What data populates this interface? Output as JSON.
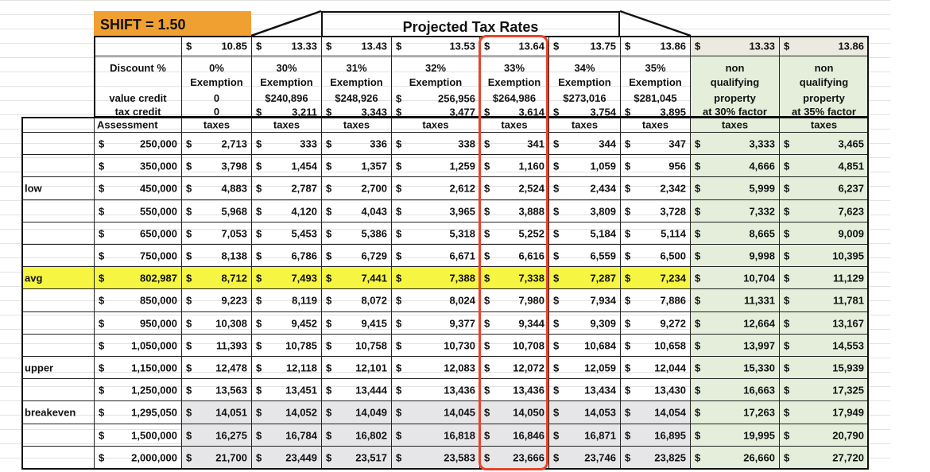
{
  "header": {
    "shift": "SHIFT = 1.50",
    "title": "Projected Tax Rates"
  },
  "colors": {
    "shift_bg": "#f0a030",
    "avg_row": "#f5f542",
    "nonqual_bg": "#e4eedb",
    "breakeven_bg": "#e6e6e8",
    "highlight_box": "#e8442a"
  },
  "rates": [
    "10.85",
    "13.33",
    "13.43",
    "13.53",
    "13.64",
    "13.75",
    "13.86",
    "13.33",
    "13.86"
  ],
  "labels": {
    "discount": "Discount %",
    "value_credit": "value credit",
    "tax_credit": "tax credit",
    "assessment": "Assessment",
    "taxes": "taxes"
  },
  "columns": [
    {
      "l1": "0%",
      "l2": "Exemption",
      "value_credit": "0",
      "tax_credit": "0"
    },
    {
      "l1": "30%",
      "l2": "Exemption",
      "value_credit": "$240,896",
      "tax_credit": "3,211"
    },
    {
      "l1": "31%",
      "l2": "Exemption",
      "value_credit": "$248,926",
      "tax_credit": "3,343"
    },
    {
      "l1": "32%",
      "l2": "Exemption",
      "value_credit": "256,956",
      "tax_credit": "3,477"
    },
    {
      "l1": "33%",
      "l2": "Exemption",
      "value_credit": "$264,986",
      "tax_credit": "3,614"
    },
    {
      "l1": "34%",
      "l2": "Exemption",
      "value_credit": "$273,016",
      "tax_credit": "3,754"
    },
    {
      "l1": "35%",
      "l2": "Exemption",
      "value_credit": "$281,045",
      "tax_credit": "3,895"
    },
    {
      "l1": "non",
      "l2": "qualifying",
      "value_credit": "property",
      "tax_credit": "at 30% factor"
    },
    {
      "l1": "non",
      "l2": "qualifying",
      "value_credit": "property",
      "tax_credit": "at 35% factor"
    }
  ],
  "rows": [
    {
      "label": "",
      "assessment": "250,000",
      "taxes": [
        "2,713",
        "333",
        "336",
        "338",
        "341",
        "344",
        "347",
        "3,333",
        "3,465"
      ]
    },
    {
      "label": "",
      "assessment": "350,000",
      "taxes": [
        "3,798",
        "1,454",
        "1,357",
        "1,259",
        "1,160",
        "1,059",
        "956",
        "4,666",
        "4,851"
      ]
    },
    {
      "label": "low",
      "assessment": "450,000",
      "taxes": [
        "4,883",
        "2,787",
        "2,700",
        "2,612",
        "2,524",
        "2,434",
        "2,342",
        "5,999",
        "6,237"
      ]
    },
    {
      "label": "",
      "assessment": "550,000",
      "taxes": [
        "5,968",
        "4,120",
        "4,043",
        "3,965",
        "3,888",
        "3,809",
        "3,728",
        "7,332",
        "7,623"
      ]
    },
    {
      "label": "",
      "assessment": "650,000",
      "taxes": [
        "7,053",
        "5,453",
        "5,386",
        "5,318",
        "5,252",
        "5,184",
        "5,114",
        "8,665",
        "9,009"
      ]
    },
    {
      "label": "",
      "assessment": "750,000",
      "taxes": [
        "8,138",
        "6,786",
        "6,729",
        "6,671",
        "6,616",
        "6,559",
        "6,500",
        "9,998",
        "10,395"
      ]
    },
    {
      "label": "avg",
      "assessment": "802,987",
      "taxes": [
        "8,712",
        "7,493",
        "7,441",
        "7,388",
        "7,338",
        "7,287",
        "7,234",
        "10,704",
        "11,129"
      ]
    },
    {
      "label": "",
      "assessment": "850,000",
      "taxes": [
        "9,223",
        "8,119",
        "8,072",
        "8,024",
        "7,980",
        "7,934",
        "7,886",
        "11,331",
        "11,781"
      ]
    },
    {
      "label": "",
      "assessment": "950,000",
      "taxes": [
        "10,308",
        "9,452",
        "9,415",
        "9,377",
        "9,344",
        "9,309",
        "9,272",
        "12,664",
        "13,167"
      ]
    },
    {
      "label": "",
      "assessment": "1,050,000",
      "taxes": [
        "11,393",
        "10,785",
        "10,758",
        "10,730",
        "10,708",
        "10,684",
        "10,658",
        "13,997",
        "14,553"
      ]
    },
    {
      "label": "upper",
      "assessment": "1,150,000",
      "taxes": [
        "12,478",
        "12,118",
        "12,101",
        "12,083",
        "12,072",
        "12,059",
        "12,044",
        "15,330",
        "15,939"
      ]
    },
    {
      "label": "",
      "assessment": "1,250,000",
      "taxes": [
        "13,563",
        "13,451",
        "13,444",
        "13,436",
        "13,436",
        "13,434",
        "13,430",
        "16,663",
        "17,325"
      ]
    },
    {
      "label": "breakeven",
      "assessment": "1,295,050",
      "taxes": [
        "14,051",
        "14,052",
        "14,049",
        "14,045",
        "14,050",
        "14,053",
        "14,054",
        "17,263",
        "17,949"
      ]
    },
    {
      "label": "",
      "assessment": "1,500,000",
      "taxes": [
        "16,275",
        "16,784",
        "16,802",
        "16,818",
        "16,846",
        "16,871",
        "16,895",
        "19,995",
        "20,790"
      ]
    },
    {
      "label": "",
      "assessment": "2,000,000",
      "taxes": [
        "21,700",
        "23,449",
        "23,517",
        "23,583",
        "23,666",
        "23,746",
        "23,825",
        "26,660",
        "27,720"
      ]
    }
  ]
}
